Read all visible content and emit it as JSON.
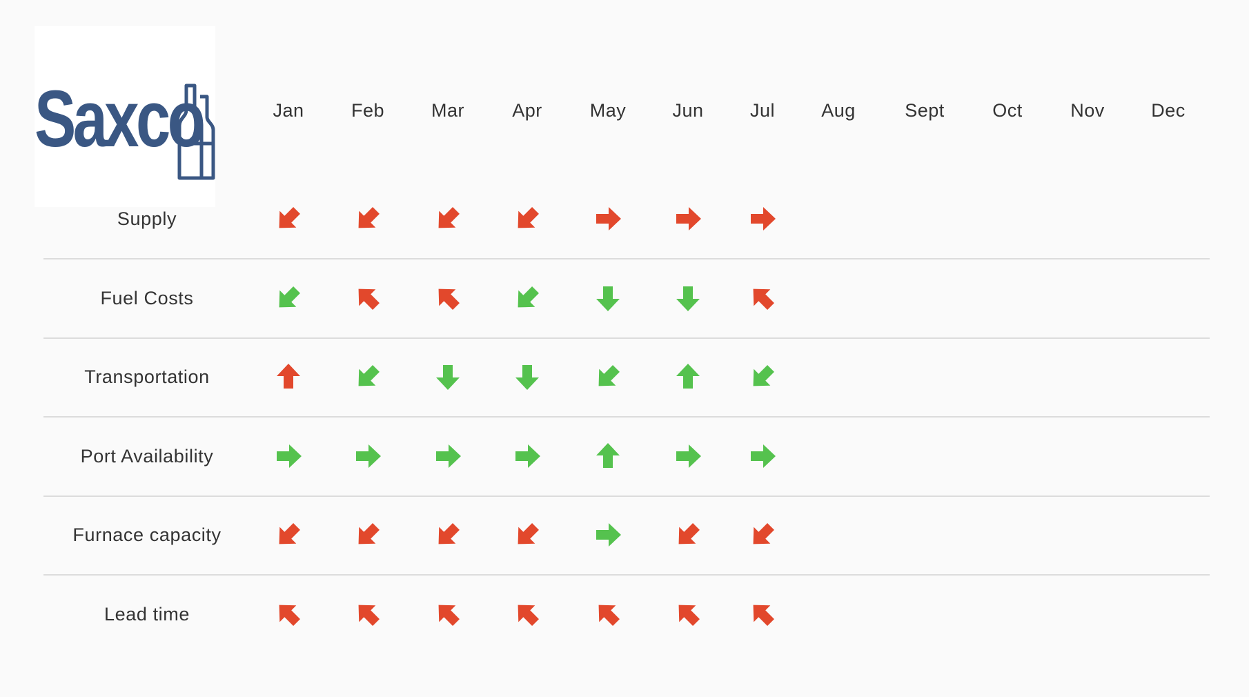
{
  "brand": {
    "logo_text": "Saxco",
    "logo_color": "#3a5783"
  },
  "colors": {
    "worse": "#e2482c",
    "better": "#55c24e"
  },
  "months": [
    "Jan",
    "Feb",
    "Mar",
    "Apr",
    "May",
    "Jun",
    "Jul",
    "Aug",
    "Sept",
    "Oct",
    "Nov",
    "Dec"
  ],
  "rows": [
    {
      "label": "Supply",
      "trends": [
        {
          "dir": "down-left",
          "color": "red"
        },
        {
          "dir": "down-left",
          "color": "red"
        },
        {
          "dir": "down-left",
          "color": "red"
        },
        {
          "dir": "down-left",
          "color": "red"
        },
        {
          "dir": "right",
          "color": "red"
        },
        {
          "dir": "right",
          "color": "red"
        },
        {
          "dir": "right",
          "color": "red"
        }
      ]
    },
    {
      "label": "Fuel Costs",
      "trends": [
        {
          "dir": "down-left",
          "color": "green"
        },
        {
          "dir": "up-left",
          "color": "red"
        },
        {
          "dir": "up-left",
          "color": "red"
        },
        {
          "dir": "down-left",
          "color": "green"
        },
        {
          "dir": "down",
          "color": "green"
        },
        {
          "dir": "down",
          "color": "green"
        },
        {
          "dir": "up-left",
          "color": "red"
        }
      ]
    },
    {
      "label": "Transportation",
      "trends": [
        {
          "dir": "up",
          "color": "red"
        },
        {
          "dir": "down-left",
          "color": "green"
        },
        {
          "dir": "down",
          "color": "green"
        },
        {
          "dir": "down",
          "color": "green"
        },
        {
          "dir": "down-left",
          "color": "green"
        },
        {
          "dir": "up",
          "color": "green"
        },
        {
          "dir": "down-left",
          "color": "green"
        }
      ]
    },
    {
      "label": "Port Availability",
      "trends": [
        {
          "dir": "right",
          "color": "green"
        },
        {
          "dir": "right",
          "color": "green"
        },
        {
          "dir": "right",
          "color": "green"
        },
        {
          "dir": "right",
          "color": "green"
        },
        {
          "dir": "up",
          "color": "green"
        },
        {
          "dir": "right",
          "color": "green"
        },
        {
          "dir": "right",
          "color": "green"
        }
      ]
    },
    {
      "label": "Furnace capacity",
      "trends": [
        {
          "dir": "down-left",
          "color": "red"
        },
        {
          "dir": "down-left",
          "color": "red"
        },
        {
          "dir": "down-left",
          "color": "red"
        },
        {
          "dir": "down-left",
          "color": "red"
        },
        {
          "dir": "right",
          "color": "green"
        },
        {
          "dir": "down-left",
          "color": "red"
        },
        {
          "dir": "down-left",
          "color": "red"
        }
      ]
    },
    {
      "label": "Lead time",
      "trends": [
        {
          "dir": "up-left",
          "color": "red"
        },
        {
          "dir": "up-left",
          "color": "red"
        },
        {
          "dir": "up-left",
          "color": "red"
        },
        {
          "dir": "up-left",
          "color": "red"
        },
        {
          "dir": "up-left",
          "color": "red"
        },
        {
          "dir": "up-left",
          "color": "red"
        },
        {
          "dir": "up-left",
          "color": "red"
        }
      ]
    }
  ]
}
